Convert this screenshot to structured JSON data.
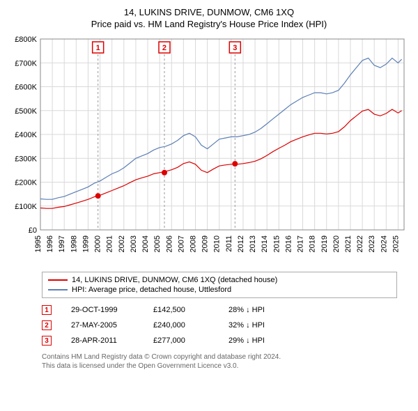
{
  "title": "14, LUKINS DRIVE, DUNMOW, CM6 1XQ",
  "subtitle": "Price paid vs. HM Land Registry's House Price Index (HPI)",
  "chart": {
    "type": "line",
    "background_color": "#ffffff",
    "grid_color": "#d9d9d9",
    "xlim": [
      1995,
      2025.5
    ],
    "ylim": [
      0,
      800000
    ],
    "ytick_step": 100000,
    "yticks": [
      "£0",
      "£100K",
      "£200K",
      "£300K",
      "£400K",
      "£500K",
      "£600K",
      "£700K",
      "£800K"
    ],
    "xticks": [
      1995,
      1996,
      1997,
      1998,
      1999,
      2000,
      2001,
      2002,
      2003,
      2004,
      2005,
      2006,
      2007,
      2008,
      2009,
      2010,
      2011,
      2012,
      2013,
      2014,
      2015,
      2016,
      2017,
      2018,
      2019,
      2020,
      2021,
      2022,
      2023,
      2024,
      2025
    ],
    "label_fontsize": 11,
    "series": [
      {
        "name": "hpi",
        "label": "HPI: Average price, detached house, Uttlesford",
        "color": "#5b7fb5",
        "line_width": 1.2,
        "data": [
          [
            1995,
            130000
          ],
          [
            1995.5,
            128000
          ],
          [
            1996,
            128000
          ],
          [
            1996.5,
            135000
          ],
          [
            1997,
            140000
          ],
          [
            1997.5,
            150000
          ],
          [
            1998,
            160000
          ],
          [
            1998.5,
            170000
          ],
          [
            1999,
            180000
          ],
          [
            1999.5,
            195000
          ],
          [
            2000,
            205000
          ],
          [
            2000.5,
            220000
          ],
          [
            2001,
            235000
          ],
          [
            2001.5,
            245000
          ],
          [
            2002,
            260000
          ],
          [
            2002.5,
            280000
          ],
          [
            2003,
            300000
          ],
          [
            2003.5,
            310000
          ],
          [
            2004,
            320000
          ],
          [
            2004.5,
            335000
          ],
          [
            2005,
            345000
          ],
          [
            2005.5,
            350000
          ],
          [
            2006,
            360000
          ],
          [
            2006.5,
            375000
          ],
          [
            2007,
            395000
          ],
          [
            2007.5,
            405000
          ],
          [
            2008,
            390000
          ],
          [
            2008.5,
            355000
          ],
          [
            2009,
            340000
          ],
          [
            2009.5,
            360000
          ],
          [
            2010,
            380000
          ],
          [
            2010.5,
            385000
          ],
          [
            2011,
            390000
          ],
          [
            2011.5,
            390000
          ],
          [
            2012,
            395000
          ],
          [
            2012.5,
            400000
          ],
          [
            2013,
            410000
          ],
          [
            2013.5,
            425000
          ],
          [
            2014,
            445000
          ],
          [
            2014.5,
            465000
          ],
          [
            2015,
            485000
          ],
          [
            2015.5,
            505000
          ],
          [
            2016,
            525000
          ],
          [
            2016.5,
            540000
          ],
          [
            2017,
            555000
          ],
          [
            2017.5,
            565000
          ],
          [
            2018,
            575000
          ],
          [
            2018.5,
            575000
          ],
          [
            2019,
            570000
          ],
          [
            2019.5,
            575000
          ],
          [
            2020,
            585000
          ],
          [
            2020.5,
            615000
          ],
          [
            2021,
            650000
          ],
          [
            2021.5,
            680000
          ],
          [
            2022,
            710000
          ],
          [
            2022.5,
            720000
          ],
          [
            2023,
            690000
          ],
          [
            2023.5,
            680000
          ],
          [
            2024,
            695000
          ],
          [
            2024.5,
            720000
          ],
          [
            2025,
            700000
          ],
          [
            2025.3,
            715000
          ]
        ]
      },
      {
        "name": "price_paid",
        "label": "14, LUKINS DRIVE, DUNMOW, CM6 1XQ (detached house)",
        "color": "#dc0000",
        "line_width": 1.2,
        "data": [
          [
            1995,
            92000
          ],
          [
            1995.5,
            90000
          ],
          [
            1996,
            90000
          ],
          [
            1996.5,
            95000
          ],
          [
            1997,
            98000
          ],
          [
            1997.5,
            105000
          ],
          [
            1998,
            112000
          ],
          [
            1998.5,
            120000
          ],
          [
            1999,
            128000
          ],
          [
            1999.5,
            138000
          ],
          [
            2000,
            145000
          ],
          [
            2000.5,
            155000
          ],
          [
            2001,
            165000
          ],
          [
            2001.5,
            175000
          ],
          [
            2002,
            185000
          ],
          [
            2002.5,
            198000
          ],
          [
            2003,
            210000
          ],
          [
            2003.5,
            218000
          ],
          [
            2004,
            225000
          ],
          [
            2004.5,
            235000
          ],
          [
            2005,
            240000
          ],
          [
            2005.5,
            245000
          ],
          [
            2006,
            252000
          ],
          [
            2006.5,
            262000
          ],
          [
            2007,
            278000
          ],
          [
            2007.5,
            285000
          ],
          [
            2008,
            275000
          ],
          [
            2008.5,
            250000
          ],
          [
            2009,
            240000
          ],
          [
            2009.5,
            255000
          ],
          [
            2010,
            268000
          ],
          [
            2010.5,
            272000
          ],
          [
            2011,
            275000
          ],
          [
            2011.5,
            275000
          ],
          [
            2012,
            278000
          ],
          [
            2012.5,
            282000
          ],
          [
            2013,
            288000
          ],
          [
            2013.5,
            298000
          ],
          [
            2014,
            312000
          ],
          [
            2014.5,
            328000
          ],
          [
            2015,
            342000
          ],
          [
            2015.5,
            355000
          ],
          [
            2016,
            370000
          ],
          [
            2016.5,
            380000
          ],
          [
            2017,
            390000
          ],
          [
            2017.5,
            398000
          ],
          [
            2018,
            405000
          ],
          [
            2018.5,
            405000
          ],
          [
            2019,
            402000
          ],
          [
            2019.5,
            405000
          ],
          [
            2020,
            412000
          ],
          [
            2020.5,
            432000
          ],
          [
            2021,
            458000
          ],
          [
            2021.5,
            478000
          ],
          [
            2022,
            498000
          ],
          [
            2022.5,
            505000
          ],
          [
            2023,
            485000
          ],
          [
            2023.5,
            478000
          ],
          [
            2024,
            488000
          ],
          [
            2024.5,
            505000
          ],
          [
            2025,
            490000
          ],
          [
            2025.3,
            500000
          ]
        ]
      }
    ],
    "sale_markers": [
      {
        "n": "1",
        "year": 1999.83,
        "price": 142500
      },
      {
        "n": "2",
        "year": 2005.4,
        "price": 240000
      },
      {
        "n": "3",
        "year": 2011.32,
        "price": 277000
      }
    ],
    "marker_box_color": "#dc0000",
    "marker_dot_color": "#dc0000"
  },
  "legend": {
    "items": [
      {
        "color": "#dc0000",
        "label": "14, LUKINS DRIVE, DUNMOW, CM6 1XQ (detached house)"
      },
      {
        "color": "#5b7fb5",
        "label": "HPI: Average price, detached house, Uttlesford"
      }
    ]
  },
  "sales": [
    {
      "n": "1",
      "date": "29-OCT-1999",
      "price": "£142,500",
      "diff": "28% ↓ HPI"
    },
    {
      "n": "2",
      "date": "27-MAY-2005",
      "price": "£240,000",
      "diff": "32% ↓ HPI"
    },
    {
      "n": "3",
      "date": "28-APR-2011",
      "price": "£277,000",
      "diff": "29% ↓ HPI"
    }
  ],
  "footnote_line1": "Contains HM Land Registry data © Crown copyright and database right 2024.",
  "footnote_line2": "This data is licensed under the Open Government Licence v3.0."
}
